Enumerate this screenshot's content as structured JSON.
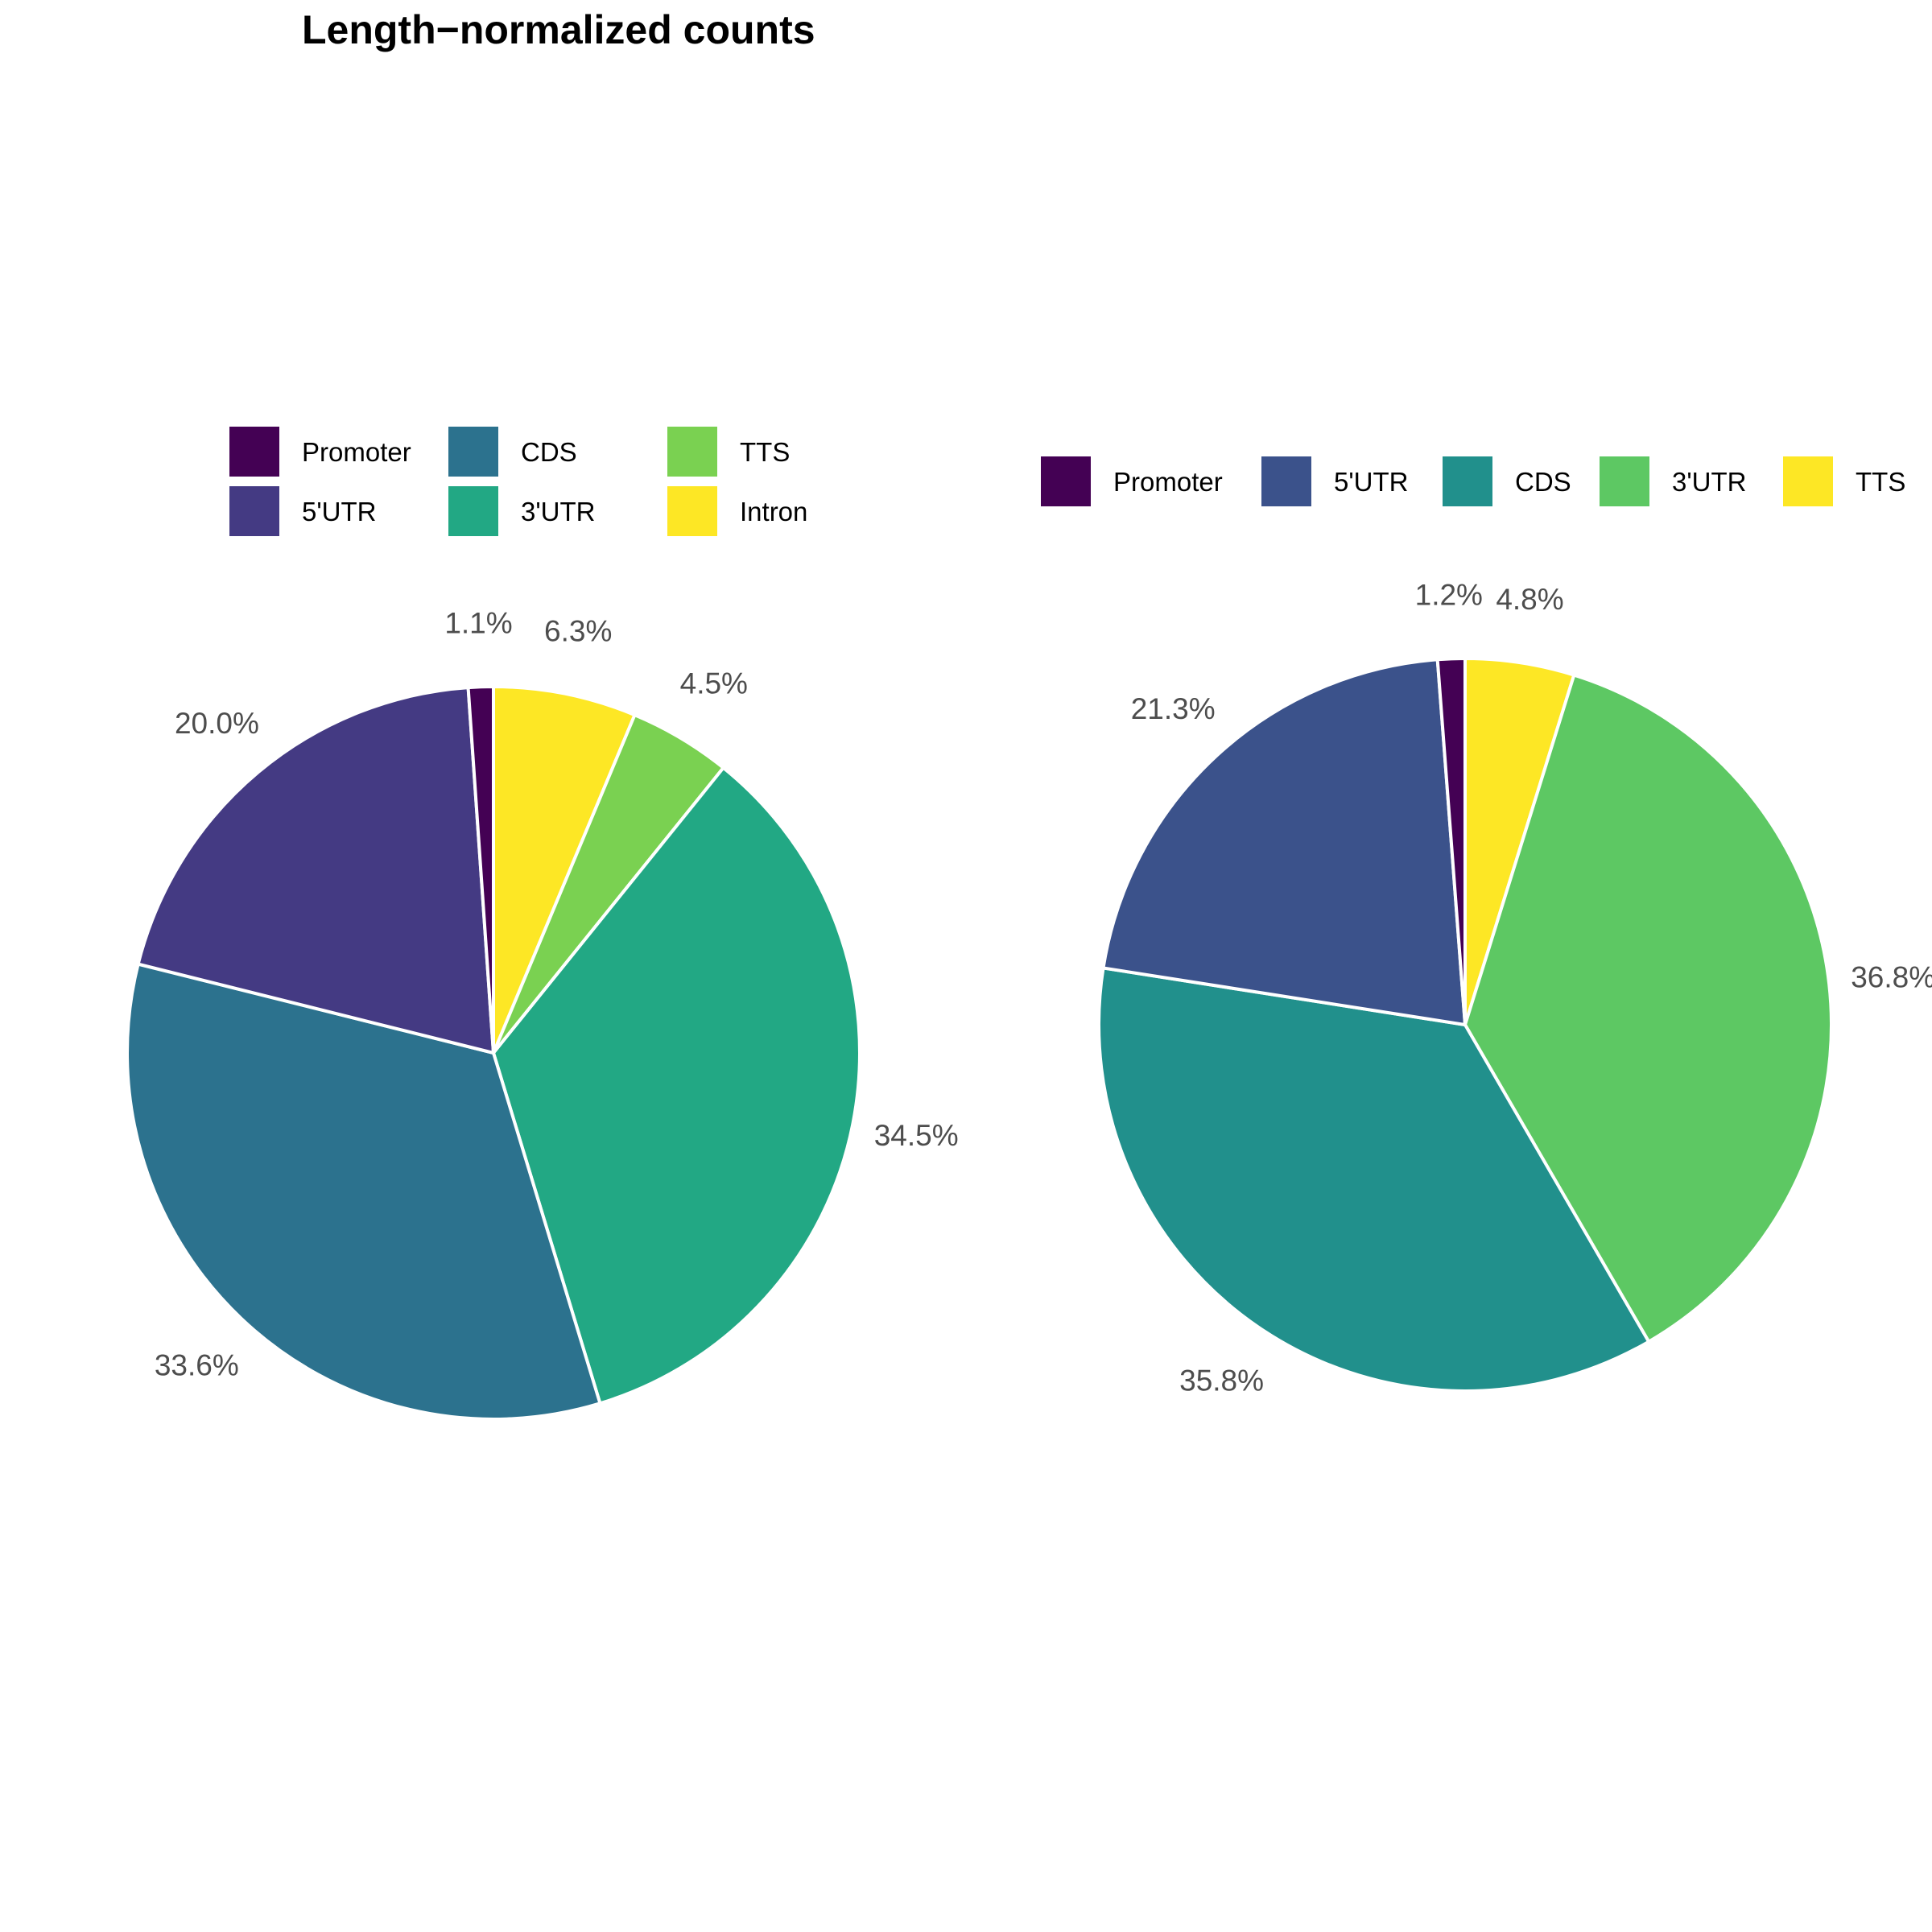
{
  "title": "Length−normalized counts",
  "chart_data": [
    {
      "type": "pie",
      "legend_position": "top",
      "categories": [
        "Promoter",
        "5'UTR",
        "CDS",
        "3'UTR",
        "TTS",
        "Intron"
      ],
      "values": [
        1.1,
        20.0,
        33.6,
        34.5,
        4.5,
        6.3
      ],
      "labels": [
        "1.1%",
        "20.0%",
        "33.6%",
        "34.5%",
        "4.5%",
        "6.3%"
      ],
      "colors": [
        "#440154",
        "#443A83",
        "#2C728E",
        "#22A884",
        "#7AD151",
        "#FDE725"
      ]
    },
    {
      "type": "pie",
      "legend_position": "top",
      "categories": [
        "Promoter",
        "5'UTR",
        "CDS",
        "3'UTR",
        "TTS"
      ],
      "values": [
        1.2,
        21.3,
        35.8,
        36.8,
        4.8
      ],
      "labels": [
        "1.2%",
        "21.3%",
        "35.8%",
        "36.8%",
        "4.8%"
      ],
      "colors": [
        "#440154",
        "#3B528B",
        "#21908C",
        "#5DC863",
        "#FDE725"
      ]
    }
  ]
}
